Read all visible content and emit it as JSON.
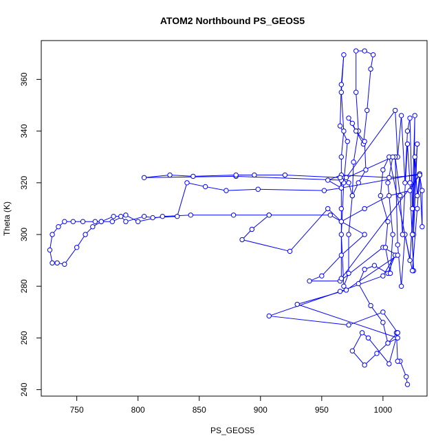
{
  "chart_data": {
    "type": "scatter",
    "title": "ATOM2 Northbound PS_GEOS5",
    "xlabel": "PS_GEOS5",
    "ylabel": "Theta (K)",
    "xlim": [
      721,
      1036
    ],
    "ylim": [
      237.5,
      375
    ],
    "xticks": [
      750,
      800,
      850,
      900,
      950,
      1000
    ],
    "yticks": [
      240,
      260,
      280,
      300,
      320,
      340,
      360
    ],
    "color": "#0000ff",
    "marker": "open-circle",
    "connected": true,
    "series": [
      {
        "points": [
          [
            1020,
            242
          ],
          [
            1019,
            245
          ],
          [
            1014,
            251
          ],
          [
            1012,
            251
          ],
          [
            1011,
            262
          ],
          [
            1012,
            262
          ],
          [
            1004,
            258
          ],
          [
            995,
            254
          ],
          [
            985,
            249.5
          ],
          [
            975,
            255
          ],
          [
            983,
            262
          ],
          [
            988,
            260
          ],
          [
            1005,
            250
          ],
          [
            1012,
            262
          ],
          [
            1000,
            270
          ],
          [
            972,
            265
          ],
          [
            907,
            268.5
          ],
          [
            965,
            278
          ],
          [
            1000,
            284
          ],
          [
            1010,
            292
          ],
          [
            1004,
            285
          ],
          [
            993,
            288
          ],
          [
            985,
            286.5
          ],
          [
            980,
            281
          ],
          [
            990,
            272.5
          ],
          [
            1000,
            266
          ],
          [
            1004,
            258
          ],
          [
            1012,
            260
          ],
          [
            930,
            273
          ],
          [
            970,
            278.5
          ],
          [
            1012,
            292
          ],
          [
            1000,
            295
          ],
          [
            965,
            282
          ],
          [
            940,
            282
          ],
          [
            950,
            284
          ],
          [
            966,
            292
          ],
          [
            985,
            300
          ],
          [
            966,
            305
          ],
          [
            955,
            310
          ],
          [
            924,
            293.5
          ],
          [
            885,
            298
          ],
          [
            893,
            302
          ],
          [
            907,
            307.5
          ],
          [
            957,
            307.5
          ],
          [
            966,
            305
          ],
          [
            985,
            310
          ],
          [
            1005,
            315
          ],
          [
            1022,
            317
          ],
          [
            1030,
            323.5
          ],
          [
            966,
            318
          ],
          [
            955,
            321
          ],
          [
            966,
            323
          ],
          [
            1005,
            322
          ],
          [
            1030,
            323
          ],
          [
            966,
            283
          ],
          [
            966,
            310
          ],
          [
            966,
            330
          ],
          [
            968,
            340
          ],
          [
            966,
            355
          ],
          [
            968,
            369.5
          ],
          [
            966,
            358
          ],
          [
            965,
            342
          ],
          [
            971,
            336
          ],
          [
            968,
            320
          ],
          [
            966,
            300
          ],
          [
            968,
            280
          ],
          [
            972,
            285
          ],
          [
            972,
            300
          ],
          [
            975,
            315
          ],
          [
            976,
            328
          ],
          [
            980,
            340
          ],
          [
            978,
            355
          ],
          [
            978,
            371
          ],
          [
            985,
            371
          ],
          [
            992,
            369.5
          ],
          [
            990,
            364
          ],
          [
            987,
            348
          ],
          [
            984,
            335
          ],
          [
            972,
            345
          ],
          [
            975,
            343
          ],
          [
            978,
            340
          ],
          [
            985,
            336
          ],
          [
            986,
            325
          ],
          [
            980,
            320
          ],
          [
            975,
            315
          ],
          [
            972,
            320
          ],
          [
            970,
            322
          ],
          [
            1010,
            348
          ],
          [
            1012,
            330
          ],
          [
            1015,
            346
          ],
          [
            1018,
            320
          ],
          [
            1020,
            340
          ],
          [
            1022,
            345
          ],
          [
            1024,
            310
          ],
          [
            1026,
            346
          ],
          [
            1025,
            300
          ],
          [
            1028,
            335
          ],
          [
            1022,
            290
          ],
          [
            1018,
            300
          ],
          [
            1015,
            280
          ],
          [
            1012,
            296
          ],
          [
            1010,
            330
          ],
          [
            1014,
            315
          ],
          [
            1016,
            300
          ],
          [
            1020,
            335
          ],
          [
            1022,
            320
          ],
          [
            1025,
            286
          ],
          [
            1024,
            300
          ],
          [
            1026,
            330
          ],
          [
            1028,
            315
          ],
          [
            1030,
            323
          ],
          [
            1032,
            317
          ],
          [
            1032,
            303
          ],
          [
            1030,
            323
          ],
          [
            1028,
            310
          ],
          [
            1024,
            286
          ],
          [
            1005,
            330
          ],
          [
            1000,
            325
          ],
          [
            998,
            315
          ],
          [
            1004,
            305
          ],
          [
            1002,
            295
          ],
          [
            1006,
            285
          ],
          [
            1008,
            300
          ],
          [
            1004,
            320
          ],
          [
            1008,
            330
          ],
          [
            966,
            321
          ],
          [
            880,
            322.5
          ],
          [
            805,
            322
          ],
          [
            826,
            323
          ],
          [
            845,
            322.5
          ],
          [
            880,
            323
          ],
          [
            895,
            323
          ],
          [
            920,
            323
          ],
          [
            965,
            322
          ],
          [
            966,
            318
          ],
          [
            952,
            317
          ],
          [
            898,
            317.5
          ],
          [
            872,
            317
          ],
          [
            855,
            318.5
          ],
          [
            840,
            320
          ],
          [
            832,
            307
          ],
          [
            812,
            306.5
          ],
          [
            805,
            307
          ],
          [
            790,
            305
          ],
          [
            786,
            307
          ],
          [
            780,
            307
          ],
          [
            770,
            305
          ],
          [
            765,
            305
          ],
          [
            755,
            305
          ],
          [
            747,
            305
          ],
          [
            740,
            305
          ],
          [
            735,
            303
          ],
          [
            730,
            300
          ],
          [
            728,
            294
          ],
          [
            730,
            289
          ],
          [
            734,
            289
          ],
          [
            740,
            288.5
          ],
          [
            750,
            295
          ],
          [
            757,
            300
          ],
          [
            763,
            303
          ],
          [
            770,
            305
          ],
          [
            779,
            305
          ],
          [
            790,
            307.5
          ],
          [
            800,
            305
          ],
          [
            820,
            307
          ],
          [
            843,
            307.5
          ],
          [
            878,
            307.5
          ],
          [
            907,
            307.5
          ]
        ]
      }
    ]
  }
}
